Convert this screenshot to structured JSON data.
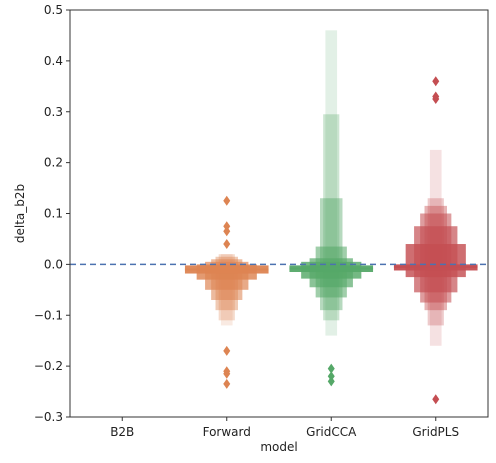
{
  "chart_data": {
    "type": "boxen",
    "xlabel": "model",
    "ylabel": "delta_b2b",
    "ylim": [
      -0.3,
      0.5
    ],
    "yticks": [
      -0.3,
      -0.2,
      -0.1,
      0.0,
      0.1,
      0.2,
      0.3,
      0.4,
      0.5
    ],
    "ytick_labels": [
      "−0.3",
      "−0.2",
      "−0.1",
      "0.0",
      "0.1",
      "0.2",
      "0.3",
      "0.4",
      "0.5"
    ],
    "categories": [
      "B2B",
      "Forward",
      "GridCCA",
      "GridPLS"
    ],
    "reference_line": {
      "y": 0.0,
      "style": "dashed",
      "color": "#4c72b0"
    },
    "grid": false,
    "series": [
      {
        "category": "B2B",
        "color": "#4c72b0",
        "median": 0.0,
        "boxes": [],
        "outliers": []
      },
      {
        "category": "Forward",
        "color": "#dd8452",
        "median": -0.01,
        "boxes": [
          {
            "low": -0.018,
            "high": -0.002
          },
          {
            "low": -0.03,
            "high": 0.0
          },
          {
            "low": -0.05,
            "high": 0.005
          },
          {
            "low": -0.07,
            "high": 0.01
          },
          {
            "low": -0.09,
            "high": 0.015
          },
          {
            "low": -0.11,
            "high": 0.02
          },
          {
            "low": -0.12,
            "high": 0.02
          }
        ],
        "outliers": [
          0.125,
          0.075,
          0.065,
          0.04,
          -0.17,
          -0.21,
          -0.215,
          -0.235
        ]
      },
      {
        "category": "GridCCA",
        "color": "#55a868",
        "median": -0.008,
        "boxes": [
          {
            "low": -0.015,
            "high": -0.002
          },
          {
            "low": -0.028,
            "high": 0.005
          },
          {
            "low": -0.045,
            "high": 0.012
          },
          {
            "low": -0.065,
            "high": 0.035
          },
          {
            "low": -0.09,
            "high": 0.13
          },
          {
            "low": -0.11,
            "high": 0.295
          },
          {
            "low": -0.14,
            "high": 0.46
          }
        ],
        "outliers": [
          -0.205,
          -0.22,
          -0.23
        ]
      },
      {
        "category": "GridPLS",
        "color": "#c44e52",
        "median": -0.005,
        "boxes": [
          {
            "low": -0.012,
            "high": 0.0
          },
          {
            "low": -0.025,
            "high": 0.04
          },
          {
            "low": -0.055,
            "high": 0.075
          },
          {
            "low": -0.075,
            "high": 0.1
          },
          {
            "low": -0.09,
            "high": 0.115
          },
          {
            "low": -0.12,
            "high": 0.13
          },
          {
            "low": -0.16,
            "high": 0.225
          }
        ],
        "outliers": [
          0.36,
          0.33,
          0.325,
          -0.265
        ]
      }
    ]
  }
}
